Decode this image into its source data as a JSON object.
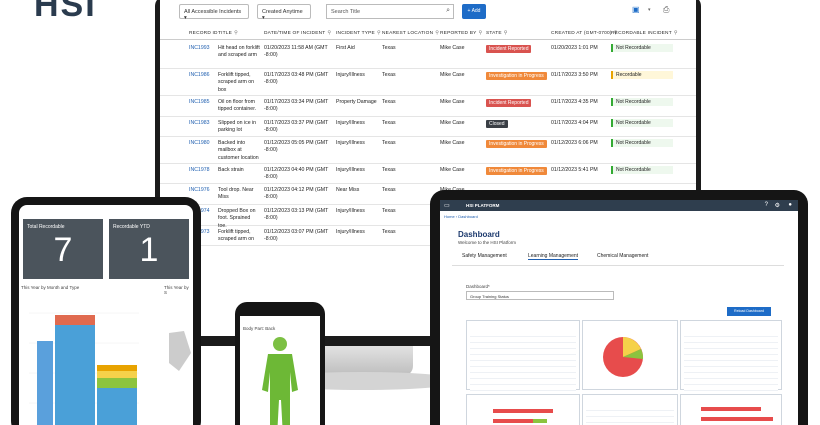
{
  "logo_text": "HSI",
  "monitor": {
    "toolbar": {
      "filter_incidents": "All Accessible Incidents ▾",
      "filter_time": "Created Anytime ▾",
      "search_placeholder": "Search Title",
      "add_label": "+ Add"
    },
    "columns": [
      "RECORD ID",
      "TITLE",
      "DATE/TIME OF INCIDENT",
      "INCIDENT TYPE",
      "NEAREST LOCATION",
      "REPORTED BY",
      "STATE",
      "CREATED AT (GMT-0700)",
      "RECORDABLE INCIDENT"
    ],
    "rows": [
      {
        "id": "INC1993",
        "title": "Hit head on forklift and scraped arm",
        "datetime": "01/20/2023 11:58 AM (GMT -8:00)",
        "type": "First Aid",
        "location": "Texas",
        "reporter": "Mike Case",
        "state": "Incident Reported",
        "created": "01/20/2023 1:01 PM",
        "recordable": "Not Recordable"
      },
      {
        "id": "INC1986",
        "title": "Forklift tipped, scraped arm on box",
        "datetime": "01/17/2023 03:48 PM (GMT -8:00)",
        "type": "Injury/Illness",
        "location": "Texas",
        "reporter": "Mike Case",
        "state": "Investigation in Progress",
        "created": "01/17/2023 3:50 PM",
        "recordable": "Recordable"
      },
      {
        "id": "INC1985",
        "title": "Oil on floor from tipped container.",
        "datetime": "01/17/2023 03:34 PM (GMT -8:00)",
        "type": "Property Damage",
        "location": "Texas",
        "reporter": "Mike Case",
        "state": "Incident Reported",
        "created": "01/17/2023 4:35 PM",
        "recordable": "Not Recordable"
      },
      {
        "id": "INC1983",
        "title": "Slipped on ice in parking lot",
        "datetime": "01/17/2023 03:37 PM (GMT -8:00)",
        "type": "Injury/Illness",
        "location": "Texas",
        "reporter": "Mike Case",
        "state": "Closed",
        "created": "01/17/2023 4:04 PM",
        "recordable": "Not Recordable"
      },
      {
        "id": "INC1980",
        "title": "Backed into mailbox at customer location",
        "datetime": "01/12/2023 05:05 PM (GMT -8:00)",
        "type": "Injury/Illness",
        "location": "Texas",
        "reporter": "Mike Case",
        "state": "Investigation in Progress",
        "created": "01/12/2023 6:06 PM",
        "recordable": "Not Recordable"
      },
      {
        "id": "INC1978",
        "title": "Back strain",
        "datetime": "01/12/2023 04:40 PM (GMT -8:00)",
        "type": "Injury/Illness",
        "location": "Texas",
        "reporter": "Mike Case",
        "state": "Investigation in Progress",
        "created": "01/12/2023 5:41 PM",
        "recordable": "Not Recordable"
      },
      {
        "id": "INC1976",
        "title": "Tool drop. Near Miss",
        "datetime": "01/12/2023 04:12 PM (GMT -8:00)",
        "type": "Near Miss",
        "location": "Texas",
        "reporter": "Mike Case",
        "state": "",
        "created": "",
        "recordable": ""
      },
      {
        "id": "INC1974",
        "title": "Dropped Box on foot. Sprained toe.",
        "datetime": "01/12/2023 03:13 PM (GMT -8:00)",
        "type": "Injury/Illness",
        "location": "Texas",
        "reporter": "Mike Case",
        "state": "",
        "created": "",
        "recordable": ""
      },
      {
        "id": "INC1973",
        "title": "Forklift tipped, scraped arm on",
        "datetime": "01/12/2023 03:07 PM (GMT -8:00)",
        "type": "Injury/Illness",
        "location": "Texas",
        "reporter": "Mike Case",
        "state": "",
        "created": "",
        "recordable": ""
      }
    ],
    "state_colors": {
      "Incident Reported": "#d9534f",
      "Investigation in Progress": "#f0893a",
      "Closed": "#3a3f45"
    }
  },
  "phone": {
    "kpi1_label": "Total Recordable",
    "kpi1_value": "7",
    "kpi2_label": "Recordable YTD",
    "kpi2_value": "1",
    "chart1_title": "This Year by Month and Type",
    "chart2_title": "This Year by S"
  },
  "small_phone": {
    "title": "Body Part: Back"
  },
  "tablet": {
    "brand": "HSI PLATFORM",
    "crumb_home": "Home",
    "crumb_current": "Dashboard",
    "title": "Dashboard",
    "subtitle": "Welcome to the HSI Platform",
    "tabs": [
      "Safety Management",
      "Learning Management",
      "Chemical Management"
    ],
    "dashboard_label": "Dashboard*",
    "dashboard_select": "Group Training Status",
    "reload_label": "Reload Dashboard"
  }
}
